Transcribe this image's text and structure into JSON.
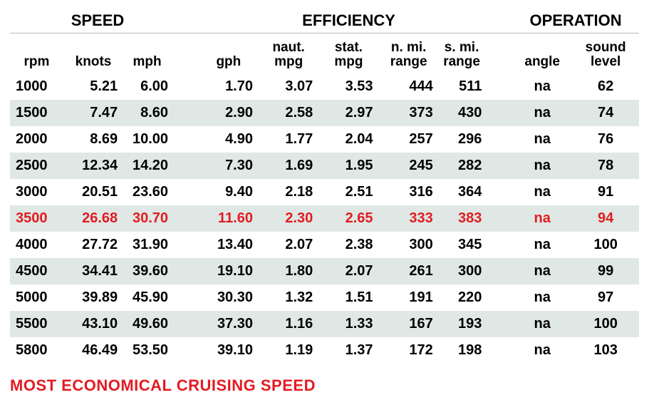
{
  "groups": {
    "speed": "SPEED",
    "efficiency": "EFFICIENCY",
    "operation": "OPERATION"
  },
  "columns": {
    "rpm": "rpm",
    "knots": "knots",
    "mph": "mph",
    "gph": "gph",
    "nmpg_l1": "naut.",
    "nmpg_l2": "mpg",
    "smpg_l1": "stat.",
    "smpg_l2": "mpg",
    "nmi_l1": "n. mi.",
    "nmi_l2": "range",
    "smi_l1": "s. mi.",
    "smi_l2": "range",
    "angle": "angle",
    "sound_l1": "sound",
    "sound_l2": "level"
  },
  "rows": [
    {
      "rpm": "1000",
      "knots": "5.21",
      "mph": "6.00",
      "gph": "1.70",
      "nmpg": "3.07",
      "smpg": "3.53",
      "nmi": "444",
      "smi": "511",
      "angle": "na",
      "sound": "62",
      "alt": false,
      "highlight": false
    },
    {
      "rpm": "1500",
      "knots": "7.47",
      "mph": "8.60",
      "gph": "2.90",
      "nmpg": "2.58",
      "smpg": "2.97",
      "nmi": "373",
      "smi": "430",
      "angle": "na",
      "sound": "74",
      "alt": true,
      "highlight": false
    },
    {
      "rpm": "2000",
      "knots": "8.69",
      "mph": "10.00",
      "gph": "4.90",
      "nmpg": "1.77",
      "smpg": "2.04",
      "nmi": "257",
      "smi": "296",
      "angle": "na",
      "sound": "76",
      "alt": false,
      "highlight": false
    },
    {
      "rpm": "2500",
      "knots": "12.34",
      "mph": "14.20",
      "gph": "7.30",
      "nmpg": "1.69",
      "smpg": "1.95",
      "nmi": "245",
      "smi": "282",
      "angle": "na",
      "sound": "78",
      "alt": true,
      "highlight": false
    },
    {
      "rpm": "3000",
      "knots": "20.51",
      "mph": "23.60",
      "gph": "9.40",
      "nmpg": "2.18",
      "smpg": "2.51",
      "nmi": "316",
      "smi": "364",
      "angle": "na",
      "sound": "91",
      "alt": false,
      "highlight": false
    },
    {
      "rpm": "3500",
      "knots": "26.68",
      "mph": "30.70",
      "gph": "11.60",
      "nmpg": "2.30",
      "smpg": "2.65",
      "nmi": "333",
      "smi": "383",
      "angle": "na",
      "sound": "94",
      "alt": true,
      "highlight": true
    },
    {
      "rpm": "4000",
      "knots": "27.72",
      "mph": "31.90",
      "gph": "13.40",
      "nmpg": "2.07",
      "smpg": "2.38",
      "nmi": "300",
      "smi": "345",
      "angle": "na",
      "sound": "100",
      "alt": false,
      "highlight": false
    },
    {
      "rpm": "4500",
      "knots": "34.41",
      "mph": "39.60",
      "gph": "19.10",
      "nmpg": "1.80",
      "smpg": "2.07",
      "nmi": "261",
      "smi": "300",
      "angle": "na",
      "sound": "99",
      "alt": true,
      "highlight": false
    },
    {
      "rpm": "5000",
      "knots": "39.89",
      "mph": "45.90",
      "gph": "30.30",
      "nmpg": "1.32",
      "smpg": "1.51",
      "nmi": "191",
      "smi": "220",
      "angle": "na",
      "sound": "97",
      "alt": false,
      "highlight": false
    },
    {
      "rpm": "5500",
      "knots": "43.10",
      "mph": "49.60",
      "gph": "37.30",
      "nmpg": "1.16",
      "smpg": "1.33",
      "nmi": "167",
      "smi": "193",
      "angle": "na",
      "sound": "100",
      "alt": true,
      "highlight": false
    },
    {
      "rpm": "5800",
      "knots": "46.49",
      "mph": "53.50",
      "gph": "39.10",
      "nmpg": "1.19",
      "smpg": "1.37",
      "nmi": "172",
      "smi": "198",
      "angle": "na",
      "sound": "103",
      "alt": false,
      "highlight": false
    }
  ],
  "footer": "MOST ECONOMICAL CRUISING SPEED",
  "colors": {
    "highlight": "#e31b23",
    "altRow": "#dfe8e4",
    "text": "#000000",
    "rule": "#bbbbbb"
  },
  "typography": {
    "header_fontsize": 22,
    "colheader_fontsize": 19,
    "cell_fontsize": 20,
    "footer_fontsize": 22,
    "weight": 700
  }
}
